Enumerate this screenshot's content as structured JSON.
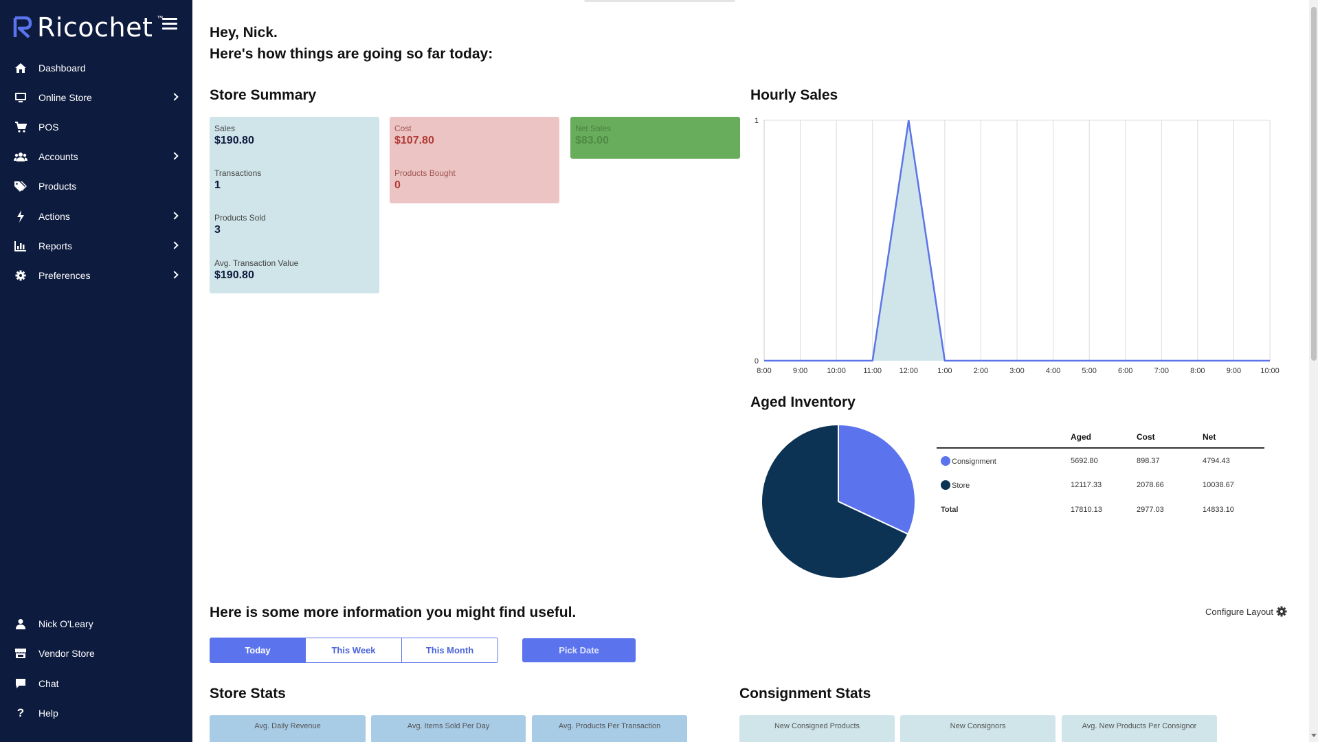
{
  "sidebar": {
    "brand": "Ricochet",
    "brand_tm": "™",
    "nav": [
      {
        "label": "Dashboard",
        "icon": "home-icon",
        "has_children": false
      },
      {
        "label": "Online Store",
        "icon": "monitor-icon",
        "has_children": true
      },
      {
        "label": "POS",
        "icon": "cart-icon",
        "has_children": false
      },
      {
        "label": "Accounts",
        "icon": "users-icon",
        "has_children": true
      },
      {
        "label": "Products",
        "icon": "tags-icon",
        "has_children": false
      },
      {
        "label": "Actions",
        "icon": "bolt-icon",
        "has_children": true
      },
      {
        "label": "Reports",
        "icon": "chart-icon",
        "has_children": true
      },
      {
        "label": "Preferences",
        "icon": "gear-icon",
        "has_children": true
      }
    ],
    "bottom": [
      {
        "label": "Nick O'Leary",
        "icon": "user-icon"
      },
      {
        "label": "Vendor Store",
        "icon": "store-icon"
      },
      {
        "label": "Chat",
        "icon": "chat-icon"
      },
      {
        "label": "Help",
        "icon": "question-icon"
      }
    ]
  },
  "greeting": {
    "line1": "Hey, Nick.",
    "line2": "Here's how things are going so far today:"
  },
  "store_summary": {
    "title": "Store Summary",
    "blue": [
      {
        "label": "Sales",
        "value": "$190.80"
      },
      {
        "label": "Transactions",
        "value": "1"
      },
      {
        "label": "Products Sold",
        "value": "3"
      },
      {
        "label": "Avg. Transaction Value",
        "value": "$190.80"
      }
    ],
    "red": [
      {
        "label": "Cost",
        "value": "$107.80"
      },
      {
        "label": "Products Bought",
        "value": "0"
      }
    ],
    "green": [
      {
        "label": "Net Sales",
        "value": "$83.00"
      }
    ]
  },
  "hourly_sales": {
    "title": "Hourly Sales"
  },
  "chart_data": [
    {
      "type": "area",
      "title": "Hourly Sales",
      "categories": [
        "8:00",
        "9:00",
        "10:00",
        "11:00",
        "12:00",
        "1:00",
        "2:00",
        "3:00",
        "4:00",
        "5:00",
        "6:00",
        "7:00",
        "8:00",
        "9:00",
        "10:00"
      ],
      "values": [
        0,
        0,
        0,
        0,
        1,
        0,
        0,
        0,
        0,
        0,
        0,
        0,
        0,
        0,
        0
      ],
      "yticks": [
        "0",
        "1"
      ],
      "ylim": [
        0,
        1
      ],
      "grid": true,
      "line_color": "#5b74e8",
      "fill_color": "#cfe5e9"
    },
    {
      "type": "pie",
      "title": "Aged Inventory",
      "labels": [
        "Consignment",
        "Store"
      ],
      "values": [
        5692.8,
        12117.33
      ],
      "colors": [
        "#5b74ee",
        "#0c3354"
      ]
    }
  ],
  "aged_inventory": {
    "title": "Aged Inventory",
    "headers": [
      "",
      "Aged",
      "Cost",
      "Net"
    ],
    "rows": [
      {
        "name": "Consignment",
        "color": "#5b74ee",
        "aged": "5692.80",
        "cost": "898.37",
        "net": "4794.43"
      },
      {
        "name": "Store",
        "color": "#0c3354",
        "aged": "12117.33",
        "cost": "2078.66",
        "net": "10038.67"
      },
      {
        "name": "Total",
        "color": "",
        "aged": "17810.13",
        "cost": "2977.03",
        "net": "14833.10"
      }
    ]
  },
  "more_info": {
    "title": "Here is some more information you might find useful.",
    "configure_label": "Configure Layout",
    "segments": [
      "Today",
      "This Week",
      "This Month"
    ],
    "active_segment": "Today",
    "pick_date": "Pick Date"
  },
  "store_stats": {
    "title": "Store Stats",
    "cards": [
      "Avg. Daily Revenue",
      "Avg. Items Sold Per Day",
      "Avg. Products Per Transaction"
    ]
  },
  "consignment_stats": {
    "title": "Consignment Stats",
    "cards": [
      "New Consigned Products",
      "New Consignors",
      "Avg. New Products Per Consignor"
    ]
  }
}
